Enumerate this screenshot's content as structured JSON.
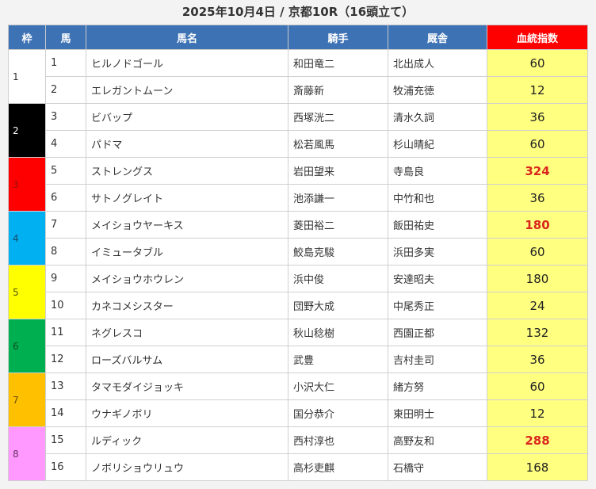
{
  "title": "2025年10月4日 / 京都10R（16頭立て）",
  "headers": {
    "frame": "枠",
    "number": "馬",
    "horse": "馬名",
    "jockey": "騎手",
    "trainer": "厩舎",
    "index": "血統指数"
  },
  "colors": {
    "header": "#3d72b4",
    "index_header": "#ff0000",
    "index_cell": "#ffff80",
    "highlight_text": "#d9261c"
  },
  "frames": [
    {
      "label": "1",
      "color": "#ffffff",
      "text_color": "#333333"
    },
    {
      "label": "2",
      "color": "#000000",
      "text_color": "#ffffff"
    },
    {
      "label": "3",
      "color": "#ff0000",
      "text_color": "#9a1010"
    },
    {
      "label": "4",
      "color": "#00b0f0",
      "text_color": "#1a4a6a"
    },
    {
      "label": "5",
      "color": "#ffff00",
      "text_color": "#555500"
    },
    {
      "label": "6",
      "color": "#00b050",
      "text_color": "#0d4d25"
    },
    {
      "label": "7",
      "color": "#ffc000",
      "text_color": "#6a5000"
    },
    {
      "label": "8",
      "color": "#ff99ff",
      "text_color": "#663366"
    }
  ],
  "rows": [
    {
      "number": "1",
      "horse": "ヒルノドゴール",
      "jockey": "和田竜二",
      "trainer": "北出成人",
      "index": "60",
      "highlight": false
    },
    {
      "number": "2",
      "horse": "エレガントムーン",
      "jockey": "斎藤新",
      "trainer": "牧浦充徳",
      "index": "12",
      "highlight": false
    },
    {
      "number": "3",
      "horse": "ビバップ",
      "jockey": "西塚洸二",
      "trainer": "清水久詞",
      "index": "36",
      "highlight": false
    },
    {
      "number": "4",
      "horse": "パドマ",
      "jockey": "松若風馬",
      "trainer": "杉山晴紀",
      "index": "60",
      "highlight": false
    },
    {
      "number": "5",
      "horse": "ストレングス",
      "jockey": "岩田望来",
      "trainer": "寺島良",
      "index": "324",
      "highlight": true
    },
    {
      "number": "6",
      "horse": "サトノグレイト",
      "jockey": "池添謙一",
      "trainer": "中竹和也",
      "index": "36",
      "highlight": false
    },
    {
      "number": "7",
      "horse": "メイショウヤーキス",
      "jockey": "菱田裕二",
      "trainer": "飯田祐史",
      "index": "180",
      "highlight": true
    },
    {
      "number": "8",
      "horse": "イミュータブル",
      "jockey": "鮫島克駿",
      "trainer": "浜田多実",
      "index": "60",
      "highlight": false
    },
    {
      "number": "9",
      "horse": "メイショウホウレン",
      "jockey": "浜中俊",
      "trainer": "安達昭夫",
      "index": "180",
      "highlight": false
    },
    {
      "number": "10",
      "horse": "カネコメシスター",
      "jockey": "団野大成",
      "trainer": "中尾秀正",
      "index": "24",
      "highlight": false
    },
    {
      "number": "11",
      "horse": "ネグレスコ",
      "jockey": "秋山稔樹",
      "trainer": "西園正都",
      "index": "132",
      "highlight": false
    },
    {
      "number": "12",
      "horse": "ローズバルサム",
      "jockey": "武豊",
      "trainer": "吉村圭司",
      "index": "36",
      "highlight": false
    },
    {
      "number": "13",
      "horse": "タマモダイジョッキ",
      "jockey": "小沢大仁",
      "trainer": "緒方努",
      "index": "60",
      "highlight": false
    },
    {
      "number": "14",
      "horse": "ウナギノボリ",
      "jockey": "国分恭介",
      "trainer": "東田明士",
      "index": "12",
      "highlight": false
    },
    {
      "number": "15",
      "horse": "ルディック",
      "jockey": "西村淳也",
      "trainer": "高野友和",
      "index": "288",
      "highlight": true
    },
    {
      "number": "16",
      "horse": "ノボリショウリュウ",
      "jockey": "高杉吏麒",
      "trainer": "石橋守",
      "index": "168",
      "highlight": false
    }
  ]
}
